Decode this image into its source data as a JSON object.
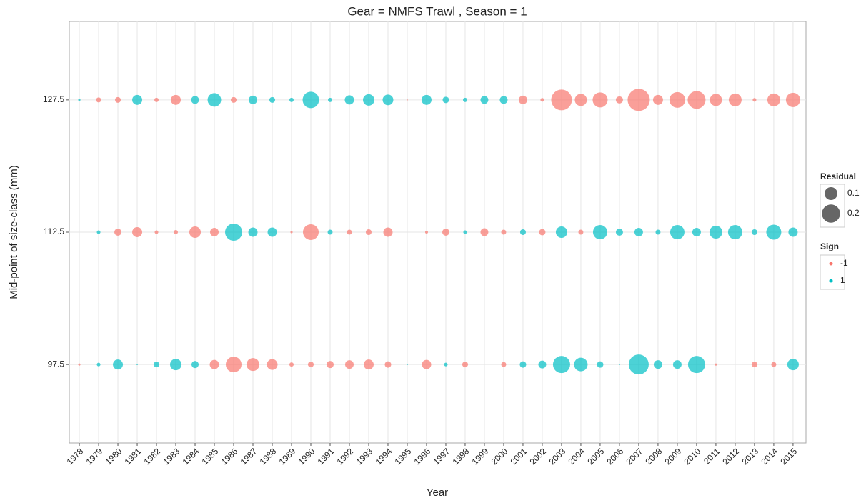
{
  "chart_data": {
    "type": "bubble",
    "title": "Gear = NMFS Trawl , Season = 1",
    "x_label": "Year",
    "y_label": "Mid-point of size-class (mm)",
    "x": [
      1978,
      1979,
      1980,
      1981,
      1982,
      1983,
      1984,
      1985,
      1986,
      1987,
      1988,
      1989,
      1990,
      1991,
      1992,
      1993,
      1994,
      1995,
      1996,
      1997,
      1998,
      1999,
      2000,
      2001,
      2002,
      2003,
      2004,
      2005,
      2006,
      2007,
      2008,
      2009,
      2010,
      2011,
      2012,
      2013,
      2014,
      2015
    ],
    "xlim": [
      1977.48,
      2015.67
    ],
    "xticks": [
      1978,
      1979,
      1980,
      1981,
      1982,
      1983,
      1984,
      1985,
      1986,
      1987,
      1988,
      1989,
      1990,
      1991,
      1992,
      1993,
      1994,
      1995,
      1996,
      1997,
      1998,
      1999,
      2000,
      2001,
      2002,
      2003,
      2004,
      2005,
      2006,
      2007,
      2008,
      2009,
      2010,
      2011,
      2012,
      2013,
      2014,
      2015
    ],
    "ylim": [
      88.6,
      136.4
    ],
    "yticks": [
      97.5,
      112.5,
      127.5
    ],
    "grid": true,
    "series": [
      {
        "y": 127.5,
        "sizes": [
          0.003,
          0.015,
          0.02,
          0.06,
          0.011,
          0.06,
          0.037,
          0.111,
          0.02,
          0.044,
          0.02,
          0.011,
          0.163,
          0.011,
          0.052,
          0.079,
          0.069,
          0.001,
          0.06,
          0.025,
          0.011,
          0.037,
          0.037,
          0.044,
          0.008,
          0.259,
          0.089,
          0.136,
          0.031,
          0.296,
          0.06,
          0.149,
          0.192,
          0.089,
          0.1,
          0.008,
          0.1,
          0.123
        ],
        "signs": [
          1,
          -1,
          -1,
          1,
          -1,
          -1,
          1,
          1,
          -1,
          1,
          1,
          1,
          1,
          1,
          1,
          1,
          1,
          -1,
          1,
          1,
          1,
          1,
          1,
          -1,
          -1,
          -1,
          -1,
          -1,
          -1,
          -1,
          -1,
          -1,
          -1,
          -1,
          -1,
          -1,
          -1,
          -1
        ]
      },
      {
        "y": 112.5,
        "sizes": [
          0,
          0.008,
          0.031,
          0.06,
          0.008,
          0.011,
          0.079,
          0.044,
          0.177,
          0.052,
          0.052,
          0.003,
          0.149,
          0.015,
          0.015,
          0.02,
          0.052,
          0,
          0.005,
          0.031,
          0.008,
          0.037,
          0.015,
          0.02,
          0.025,
          0.079,
          0.015,
          0.123,
          0.031,
          0.044,
          0.015,
          0.123,
          0.044,
          0.1,
          0.123,
          0.02,
          0.136,
          0.052
        ],
        "signs": [
          1,
          1,
          -1,
          -1,
          -1,
          -1,
          -1,
          -1,
          1,
          1,
          1,
          -1,
          -1,
          1,
          -1,
          -1,
          -1,
          1,
          -1,
          -1,
          1,
          -1,
          -1,
          1,
          -1,
          1,
          -1,
          1,
          1,
          1,
          1,
          1,
          1,
          1,
          1,
          1,
          1,
          1
        ]
      },
      {
        "y": 97.5,
        "sizes": [
          0.003,
          0.008,
          0.06,
          0.001,
          0.02,
          0.079,
          0.031,
          0.052,
          0.149,
          0.1,
          0.069,
          0.011,
          0.02,
          0.031,
          0.044,
          0.06,
          0.025,
          0.001,
          0.052,
          0.008,
          0.02,
          0,
          0.015,
          0.025,
          0.037,
          0.177,
          0.111,
          0.025,
          0.001,
          0.241,
          0.044,
          0.044,
          0.177,
          0.003,
          0,
          0.02,
          0.015,
          0.079
        ],
        "signs": [
          -1,
          1,
          1,
          1,
          1,
          1,
          1,
          -1,
          -1,
          -1,
          -1,
          -1,
          -1,
          -1,
          -1,
          -1,
          -1,
          1,
          -1,
          1,
          -1,
          1,
          -1,
          1,
          1,
          1,
          1,
          1,
          1,
          1,
          1,
          1,
          1,
          -1,
          1,
          -1,
          -1,
          1
        ]
      }
    ],
    "size_legend": {
      "title": "Residual",
      "values": [
        0.1,
        0.2
      ]
    },
    "sign_legend": {
      "title": "Sign",
      "values": [
        -1,
        1
      ],
      "colors": [
        "#f8766d",
        "#00bfc4"
      ]
    }
  }
}
